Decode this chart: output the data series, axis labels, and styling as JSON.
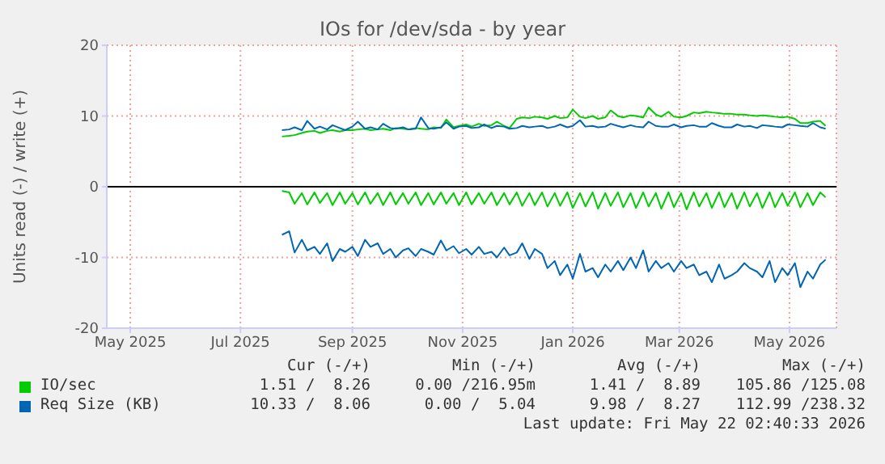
{
  "chart_data": {
    "type": "line",
    "title": "IOs for /dev/sda - by year",
    "ylabel": "Units read (-) / write (+)",
    "x": [
      "2025-07-24",
      "2025-07-28",
      "2025-07-31",
      "2025-08-04",
      "2025-08-07",
      "2025-08-11",
      "2025-08-14",
      "2025-08-18",
      "2025-08-21",
      "2025-08-25",
      "2025-08-28",
      "2025-09-01",
      "2025-09-04",
      "2025-09-08",
      "2025-09-11",
      "2025-09-15",
      "2025-09-18",
      "2025-09-22",
      "2025-09-25",
      "2025-09-29",
      "2025-10-02",
      "2025-10-06",
      "2025-10-09",
      "2025-10-13",
      "2025-10-16",
      "2025-10-20",
      "2025-10-23",
      "2025-10-27",
      "2025-10-30",
      "2025-11-03",
      "2025-11-06",
      "2025-11-10",
      "2025-11-13",
      "2025-11-17",
      "2025-11-20",
      "2025-11-24",
      "2025-11-27",
      "2025-12-01",
      "2025-12-04",
      "2025-12-08",
      "2025-12-11",
      "2025-12-15",
      "2025-12-18",
      "2025-12-22",
      "2025-12-25",
      "2025-12-29",
      "2026-01-01",
      "2026-01-05",
      "2026-01-08",
      "2026-01-12",
      "2026-01-15",
      "2026-01-19",
      "2026-01-22",
      "2026-01-26",
      "2026-01-29",
      "2026-02-02",
      "2026-02-05",
      "2026-02-09",
      "2026-02-12",
      "2026-02-16",
      "2026-02-19",
      "2026-02-23",
      "2026-02-26",
      "2026-03-02",
      "2026-03-05",
      "2026-03-09",
      "2026-03-12",
      "2026-03-16",
      "2026-03-19",
      "2026-03-23",
      "2026-03-26",
      "2026-03-30",
      "2026-04-02",
      "2026-04-06",
      "2026-04-09",
      "2026-04-13",
      "2026-04-16",
      "2026-04-20",
      "2026-04-23",
      "2026-04-27",
      "2026-04-30",
      "2026-05-04",
      "2026-05-07",
      "2026-05-11",
      "2026-05-14",
      "2026-05-18",
      "2026-05-21"
    ],
    "series": [
      {
        "name": "IO/sec",
        "color": "#00cc00",
        "values": [
          7.1,
          7.2,
          7.3,
          7.6,
          7.8,
          7.9,
          7.6,
          7.9,
          8.0,
          7.8,
          8.0,
          8.0,
          8.1,
          8.2,
          8.0,
          8.1,
          8.2,
          8.0,
          8.3,
          8.2,
          8.1,
          8.3,
          8.2,
          8.1,
          8.4,
          8.3,
          9.5,
          8.4,
          8.6,
          8.8,
          8.5,
          8.9,
          8.6,
          8.7,
          9.2,
          8.6,
          8.3,
          9.6,
          9.8,
          9.7,
          9.9,
          9.8,
          9.6,
          10.0,
          9.7,
          9.8,
          10.9,
          9.9,
          9.7,
          10.0,
          9.6,
          9.8,
          10.8,
          10.0,
          9.8,
          10.1,
          10.0,
          9.8,
          11.2,
          10.2,
          9.9,
          10.6,
          9.9,
          9.8,
          10.0,
          10.5,
          10.4,
          10.6,
          10.5,
          10.4,
          10.3,
          10.3,
          10.2,
          10.2,
          10.1,
          10.0,
          10.1,
          10.0,
          9.9,
          9.8,
          9.9,
          9.6,
          9.0,
          9.0,
          9.2,
          9.3,
          8.6
        ]
      },
      {
        "color": "#00cc00",
        "values": [
          -0.6,
          -0.8,
          -2.4,
          -0.9,
          -2.5,
          -0.8,
          -2.3,
          -0.9,
          -2.6,
          -0.8,
          -2.4,
          -0.9,
          -2.5,
          -0.8,
          -2.4,
          -0.9,
          -2.6,
          -0.8,
          -2.5,
          -0.9,
          -2.4,
          -0.8,
          -2.6,
          -0.9,
          -2.5,
          -0.8,
          -2.4,
          -0.9,
          -2.6,
          -0.8,
          -2.5,
          -0.9,
          -2.4,
          -0.8,
          -2.6,
          -0.9,
          -2.5,
          -0.8,
          -2.7,
          -0.9,
          -2.6,
          -0.8,
          -2.8,
          -0.9,
          -2.7,
          -0.8,
          -3.0,
          -0.9,
          -2.8,
          -0.8,
          -3.1,
          -0.9,
          -2.7,
          -0.8,
          -2.9,
          -0.9,
          -3.0,
          -0.8,
          -2.8,
          -0.9,
          -3.1,
          -0.8,
          -2.9,
          -0.9,
          -3.2,
          -0.8,
          -2.8,
          -0.9,
          -3.0,
          -0.8,
          -2.9,
          -0.9,
          -3.1,
          -0.8,
          -2.8,
          -0.9,
          -3.0,
          -0.8,
          -2.9,
          -0.9,
          -2.7,
          -0.8,
          -2.9,
          -0.9,
          -2.6,
          -0.8,
          -1.5
        ]
      },
      {
        "name": "Req Size (KB)",
        "color": "#0066b3",
        "values": [
          8.0,
          8.1,
          8.4,
          8.0,
          9.3,
          8.2,
          8.5,
          8.1,
          8.7,
          8.3,
          8.0,
          8.5,
          9.2,
          8.2,
          8.4,
          8.1,
          8.9,
          8.3,
          8.2,
          8.4,
          8.1,
          8.2,
          9.8,
          8.3,
          8.2,
          8.4,
          9.1,
          8.2,
          8.5,
          8.6,
          8.3,
          8.4,
          8.8,
          8.3,
          8.6,
          8.5,
          8.2,
          8.3,
          8.6,
          8.4,
          8.5,
          8.6,
          8.3,
          8.5,
          8.8,
          8.4,
          8.6,
          9.4,
          8.5,
          8.6,
          8.4,
          8.5,
          8.9,
          8.6,
          8.4,
          8.7,
          8.5,
          8.4,
          9.2,
          8.6,
          8.5,
          8.5,
          8.8,
          8.4,
          8.6,
          8.7,
          8.5,
          8.5,
          9.0,
          8.6,
          8.4,
          8.4,
          8.8,
          8.5,
          8.6,
          8.3,
          8.7,
          8.6,
          8.5,
          8.4,
          8.8,
          8.7,
          8.6,
          8.5,
          9.0,
          8.4,
          8.2
        ]
      },
      {
        "color": "#0066b3",
        "values": [
          -6.8,
          -6.3,
          -9.3,
          -7.5,
          -9.0,
          -8.5,
          -9.5,
          -8.0,
          -10.5,
          -8.8,
          -9.2,
          -8.5,
          -9.8,
          -7.5,
          -8.5,
          -8.0,
          -9.5,
          -8.8,
          -10.0,
          -9.0,
          -8.7,
          -9.8,
          -8.8,
          -9.2,
          -9.6,
          -7.6,
          -9.0,
          -8.4,
          -9.4,
          -8.8,
          -9.6,
          -8.5,
          -9.5,
          -9.2,
          -10.0,
          -8.6,
          -9.7,
          -9.3,
          -8.0,
          -10.2,
          -8.8,
          -9.5,
          -11.5,
          -10.5,
          -12.5,
          -11.0,
          -13.0,
          -9.5,
          -12.0,
          -11.5,
          -12.8,
          -11.0,
          -12.0,
          -10.5,
          -11.8,
          -10.0,
          -11.5,
          -9.0,
          -12.0,
          -10.5,
          -11.5,
          -10.8,
          -12.0,
          -10.5,
          -11.5,
          -11.0,
          -12.5,
          -12.0,
          -13.5,
          -11.0,
          -13.0,
          -12.5,
          -12.0,
          -10.8,
          -11.5,
          -12.0,
          -12.8,
          -10.5,
          -13.5,
          -11.5,
          -12.5,
          -10.8,
          -14.2,
          -12.0,
          -13.0,
          -11.0,
          -10.3
        ]
      }
    ],
    "xlim": [
      "2025-04-18",
      "2026-05-27"
    ],
    "xticks": [
      {
        "value": "2025-05-01",
        "label": "May 2025"
      },
      {
        "value": "2025-07-01",
        "label": "Jul 2025"
      },
      {
        "value": "2025-09-01",
        "label": "Sep 2025"
      },
      {
        "value": "2025-11-01",
        "label": "Nov 2025"
      },
      {
        "value": "2026-01-01",
        "label": "Jan 2026"
      },
      {
        "value": "2026-03-01",
        "label": "Mar 2026"
      },
      {
        "value": "2026-05-01",
        "label": "May 2026"
      }
    ],
    "ylim": [
      -20,
      20
    ],
    "yticks": [
      -20,
      -10,
      0,
      10,
      20
    ],
    "ref_lines": [
      {
        "axis": "y",
        "value": 0,
        "color": "#000000"
      }
    ],
    "grid": true,
    "legend": "bottom",
    "line_style": "solid",
    "marker": "none",
    "annotations": [
      "Cur (-/+)",
      "Min (-/+)",
      "Avg (-/+)",
      "Max (-/+)",
      "1.51 /  8.26",
      "0.00 /216.95m",
      "1.41 /  8.89",
      "105.86 /125.08",
      "10.33 /  8.06",
      "0.00 /  5.04",
      "9.98 /  8.27",
      "112.99 /238.32",
      "Last update: Fri May 22 02:40:33 2026"
    ]
  }
}
